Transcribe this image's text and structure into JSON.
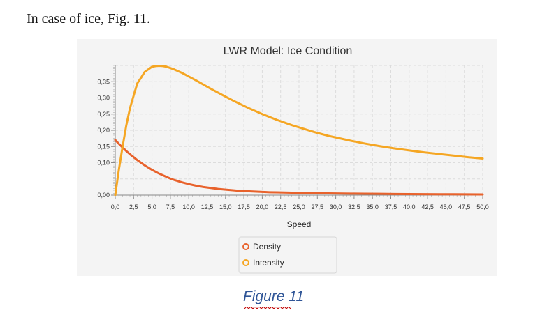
{
  "intro_text": "In case of ice, Fig. 11.",
  "caption": "Figure 11",
  "chart_data": {
    "type": "line",
    "title": "LWR Model: Ice Condition",
    "xlabel": "Speed",
    "ylabel": "",
    "xlim": [
      0,
      50
    ],
    "ylim": [
      0,
      0.4
    ],
    "grid": true,
    "legend_position": "bottom-center",
    "x_ticks": [
      "0,0",
      "2,5",
      "5,0",
      "7,5",
      "10,0",
      "12,5",
      "15,0",
      "17,5",
      "20,0",
      "22,5",
      "25,0",
      "27,5",
      "30,0",
      "32,5",
      "35,0",
      "37,5",
      "40,0",
      "42,5",
      "45,0",
      "47,5",
      "50,0"
    ],
    "y_ticks": [
      "0,00",
      "0,10",
      "0,15",
      "0,20",
      "0,25",
      "0,30",
      "0,35"
    ],
    "x": [
      0,
      0.5,
      1,
      1.5,
      2,
      2.5,
      3,
      3.5,
      4,
      4.5,
      5,
      5.5,
      6,
      6.5,
      7,
      7.5,
      8,
      9,
      10,
      11,
      12,
      13,
      14,
      15,
      16,
      17,
      18,
      19,
      20,
      21,
      22,
      23,
      24,
      25,
      26,
      27,
      28,
      29,
      30,
      32,
      34,
      36,
      38,
      40,
      42,
      44,
      46,
      48,
      50
    ],
    "series": [
      {
        "name": "Density",
        "color": "#e8622c",
        "values": [
          0.17,
          0.158,
          0.147,
          0.136,
          0.126,
          0.117,
          0.108,
          0.1,
          0.092,
          0.085,
          0.078,
          0.072,
          0.066,
          0.061,
          0.056,
          0.051,
          0.047,
          0.04,
          0.034,
          0.029,
          0.025,
          0.022,
          0.019,
          0.017,
          0.015,
          0.013,
          0.012,
          0.011,
          0.01,
          0.009,
          0.0085,
          0.008,
          0.0075,
          0.007,
          0.0066,
          0.0062,
          0.0058,
          0.0055,
          0.0052,
          0.0047,
          0.0043,
          0.0039,
          0.0036,
          0.0033,
          0.003,
          0.0028,
          0.0026,
          0.0024,
          0.0022
        ]
      },
      {
        "name": "Intensity",
        "color": "#f5a623",
        "values": [
          0.0,
          0.08,
          0.15,
          0.215,
          0.268,
          0.307,
          0.345,
          0.362,
          0.38,
          0.388,
          0.396,
          0.398,
          0.399,
          0.398,
          0.396,
          0.392,
          0.388,
          0.378,
          0.366,
          0.354,
          0.341,
          0.328,
          0.316,
          0.304,
          0.292,
          0.281,
          0.27,
          0.26,
          0.25,
          0.241,
          0.232,
          0.224,
          0.216,
          0.209,
          0.202,
          0.195,
          0.189,
          0.183,
          0.178,
          0.168,
          0.159,
          0.151,
          0.144,
          0.138,
          0.132,
          0.127,
          0.122,
          0.117,
          0.113
        ]
      }
    ]
  }
}
